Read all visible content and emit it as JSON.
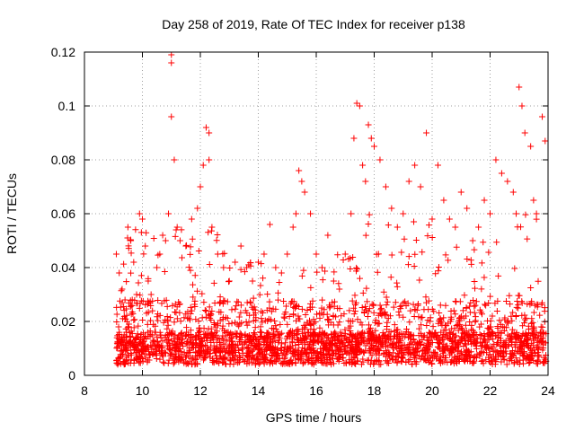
{
  "chart_data": {
    "type": "scatter",
    "title": "Day 258 of 2019, Rate Of TEC Index for receiver p138",
    "xlabel": "GPS time / hours",
    "ylabel": "ROTI / TECUs",
    "xlim": [
      8,
      24
    ],
    "ylim": [
      0,
      0.12
    ],
    "x_ticks": [
      "8",
      "10",
      "12",
      "14",
      "16",
      "18",
      "20",
      "22",
      "24"
    ],
    "y_ticks": [
      "0",
      "0.02",
      "0.04",
      "0.06",
      "0.08",
      "0.1",
      "0.12"
    ],
    "grid": true,
    "marker": "+",
    "series": [
      {
        "name": "ROTI",
        "color": "#ff0000",
        "x": [
          9.1,
          9.2,
          9.3,
          9.4,
          9.5,
          9.6,
          9.7,
          9.8,
          9.9,
          10.0,
          10.1,
          10.2,
          10.3,
          10.5,
          10.6,
          10.7,
          10.8,
          10.9,
          11.0,
          11.0,
          11.0,
          11.1,
          11.2,
          11.3,
          11.5,
          11.7,
          11.9,
          12.0,
          12.1,
          12.2,
          12.3,
          12.3,
          12.4,
          12.6,
          12.8,
          13.0,
          13.2,
          13.4,
          13.6,
          13.8,
          14.0,
          14.2,
          14.4,
          14.6,
          14.8,
          15.0,
          15.2,
          15.3,
          15.4,
          15.5,
          15.6,
          15.8,
          16.0,
          16.2,
          16.4,
          16.6,
          16.8,
          17.0,
          17.2,
          17.3,
          17.4,
          17.5,
          17.6,
          17.7,
          17.8,
          17.9,
          18.0,
          18.2,
          18.4,
          18.6,
          18.8,
          19.0,
          19.2,
          19.4,
          19.6,
          19.8,
          20.0,
          20.2,
          20.4,
          20.6,
          20.8,
          21.0,
          21.2,
          21.4,
          21.6,
          21.8,
          22.0,
          22.2,
          22.4,
          22.6,
          22.8,
          22.9,
          23.0,
          23.1,
          23.2,
          23.4,
          23.5,
          23.6,
          23.8,
          23.9
        ],
        "y": [
          0.045,
          0.038,
          0.032,
          0.028,
          0.055,
          0.05,
          0.042,
          0.03,
          0.06,
          0.058,
          0.048,
          0.035,
          0.03,
          0.04,
          0.045,
          0.052,
          0.05,
          0.06,
          0.119,
          0.116,
          0.096,
          0.08,
          0.055,
          0.05,
          0.048,
          0.058,
          0.062,
          0.07,
          0.078,
          0.092,
          0.09,
          0.08,
          0.055,
          0.045,
          0.04,
          0.035,
          0.042,
          0.048,
          0.04,
          0.035,
          0.042,
          0.045,
          0.056,
          0.04,
          0.038,
          0.045,
          0.055,
          0.06,
          0.076,
          0.072,
          0.068,
          0.06,
          0.045,
          0.04,
          0.052,
          0.035,
          0.032,
          0.045,
          0.06,
          0.088,
          0.101,
          0.1,
          0.078,
          0.072,
          0.093,
          0.088,
          0.085,
          0.08,
          0.07,
          0.062,
          0.055,
          0.06,
          0.072,
          0.078,
          0.07,
          0.09,
          0.058,
          0.078,
          0.065,
          0.058,
          0.055,
          0.068,
          0.062,
          0.05,
          0.055,
          0.065,
          0.06,
          0.08,
          0.075,
          0.072,
          0.068,
          0.06,
          0.107,
          0.1,
          0.09,
          0.085,
          0.065,
          0.06,
          0.096,
          0.087
        ]
      }
    ]
  }
}
